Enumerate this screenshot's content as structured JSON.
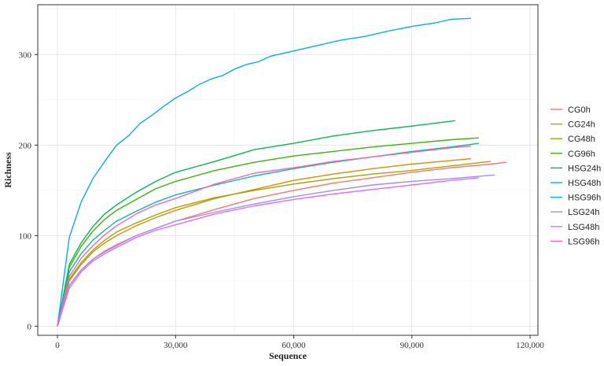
{
  "chart_data": {
    "type": "line",
    "xlabel": "Sequence",
    "ylabel": "Richness",
    "xlim": [
      -5000,
      122000
    ],
    "ylim": [
      -10,
      355
    ],
    "xticks": [
      0,
      30000,
      60000,
      90000,
      120000
    ],
    "xtick_labels": [
      "0",
      "30,000",
      "60,000",
      "90,000",
      "120,000"
    ],
    "yticks": [
      0,
      100,
      200,
      300
    ],
    "ytick_labels": [
      "0",
      "100",
      "200",
      "300"
    ],
    "grid": true,
    "legend_position": "right",
    "series": [
      {
        "name": "CG0h",
        "color": "#F8766D",
        "x": [
          0,
          3000,
          6000,
          9000,
          12000,
          15000,
          20000,
          25000,
          30000,
          40000,
          50000,
          60000,
          70000,
          80000,
          90000,
          100000,
          110000,
          114000
        ],
        "y": [
          0,
          45,
          62,
          74,
          83,
          90,
          100,
          108,
          116,
          129,
          141,
          150,
          158,
          164,
          170,
          175,
          179,
          181
        ]
      },
      {
        "name": "CG24h",
        "color": "#D89000",
        "x": [
          0,
          3000,
          6000,
          9000,
          12000,
          15000,
          20000,
          25000,
          30000,
          40000,
          50000,
          60000,
          70000,
          80000,
          90000,
          100000,
          105000
        ],
        "y": [
          0,
          50,
          68,
          82,
          92,
          100,
          111,
          120,
          128,
          141,
          151,
          161,
          168,
          174,
          179,
          183,
          185
        ]
      },
      {
        "name": "CG48h",
        "color": "#A3A500",
        "x": [
          0,
          3000,
          6000,
          9000,
          12000,
          15000,
          20000,
          25000,
          30000,
          40000,
          50000,
          60000,
          70000,
          80000,
          90000,
          100000,
          110000
        ],
        "y": [
          0,
          52,
          70,
          84,
          95,
          104,
          114,
          123,
          131,
          142,
          150,
          157,
          163,
          168,
          172,
          177,
          182
        ]
      },
      {
        "name": "CG96h",
        "color": "#39B600",
        "x": [
          0,
          3000,
          6000,
          9000,
          12000,
          15000,
          20000,
          25000,
          30000,
          40000,
          50000,
          60000,
          70000,
          80000,
          90000,
          100000,
          107000
        ],
        "y": [
          0,
          65,
          88,
          105,
          118,
          128,
          140,
          152,
          160,
          172,
          181,
          188,
          193,
          198,
          202,
          206,
          208
        ]
      },
      {
        "name": "HSG24h",
        "color": "#00BB4E",
        "x": [
          0,
          3000,
          6000,
          9000,
          12000,
          15000,
          20000,
          25000,
          30000,
          40000,
          50000,
          60000,
          70000,
          80000,
          90000,
          101000
        ],
        "y": [
          0,
          68,
          92,
          110,
          124,
          134,
          148,
          160,
          170,
          182,
          195,
          202,
          210,
          216,
          221,
          227
        ]
      },
      {
        "name": "HSG48h",
        "color": "#00BFA5",
        "x": [
          0,
          3000,
          6000,
          9000,
          12000,
          15000,
          20000,
          25000,
          30000,
          40000,
          50000,
          60000,
          70000,
          80000,
          90000,
          100000,
          107000
        ],
        "y": [
          0,
          60,
          80,
          95,
          106,
          116,
          127,
          137,
          145,
          156,
          166,
          174,
          181,
          187,
          193,
          198,
          202
        ]
      },
      {
        "name": "HSG96h",
        "color": "#00B0F6",
        "x": [
          0,
          3000,
          6000,
          9000,
          12000,
          15000,
          18000,
          21000,
          24000,
          27000,
          30000,
          33000,
          36000,
          39000,
          42000,
          45000,
          48000,
          51000,
          54000,
          60000,
          66000,
          72000,
          78000,
          84000,
          90000,
          96000,
          100000,
          105000
        ],
        "y": [
          0,
          98,
          137,
          163,
          182,
          200,
          210,
          224,
          233,
          243,
          252,
          259,
          267,
          273,
          277,
          284,
          289,
          292,
          298,
          304,
          310,
          316,
          320,
          326,
          331,
          335,
          339,
          340
        ]
      },
      {
        "name": "LSG24h",
        "color": "#9590FF",
        "x": [
          0,
          3000,
          6000,
          9000,
          12000,
          15000,
          20000,
          25000,
          30000,
          40000,
          50000,
          60000,
          70000,
          80000,
          90000,
          100000,
          111000
        ],
        "y": [
          0,
          45,
          62,
          74,
          82,
          89,
          100,
          108,
          116,
          126,
          135,
          143,
          150,
          156,
          160,
          163,
          167
        ]
      },
      {
        "name": "LSG48h",
        "color": "#E76BF3",
        "x": [
          0,
          3000,
          6000,
          9000,
          12000,
          15000,
          20000,
          25000,
          30000,
          40000,
          50000,
          60000,
          70000,
          80000,
          90000,
          100000,
          107000
        ],
        "y": [
          0,
          42,
          60,
          72,
          80,
          87,
          98,
          106,
          112,
          124,
          133,
          140,
          146,
          151,
          156,
          161,
          164
        ]
      },
      {
        "name": "LSG96h",
        "color": "#FF62BC",
        "x": [
          0,
          3000,
          6000,
          9000,
          12000,
          15000,
          20000,
          25000,
          30000,
          40000,
          50000,
          60000,
          70000,
          80000,
          90000,
          100000,
          105000
        ],
        "y": [
          0,
          55,
          75,
          89,
          101,
          111,
          124,
          134,
          141,
          157,
          169,
          175,
          182,
          187,
          192,
          197,
          199
        ]
      }
    ]
  }
}
